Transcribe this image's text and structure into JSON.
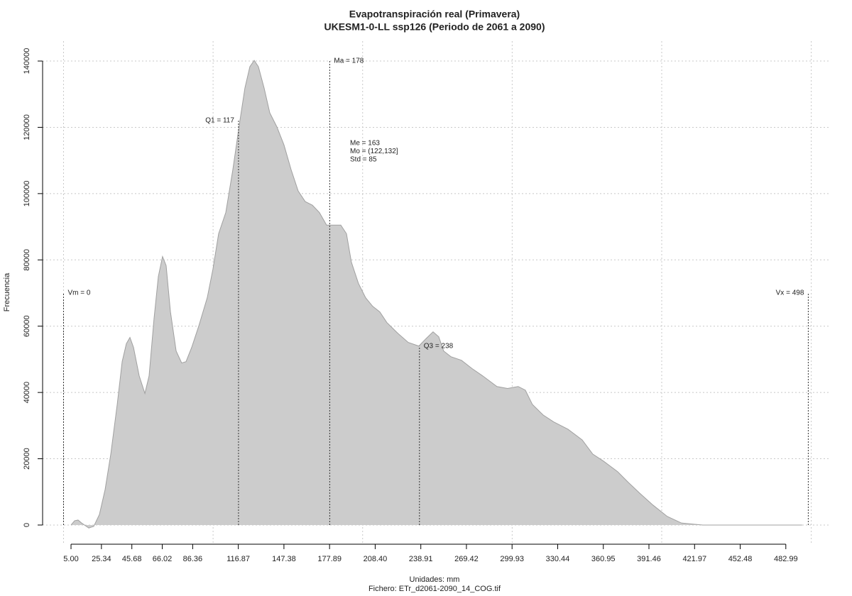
{
  "chart_data": {
    "type": "area",
    "title": "Evapotranspiración real (Primavera)",
    "subtitle": "UKESM1-0-LL ssp126 (Periodo de 2061 a 2090)",
    "xlabel": "Unidades: mm",
    "footer": "Fichero: ETr_d2061-2090_14_COG.tif",
    "ylabel": "Frecuencia",
    "color": "#cccccc",
    "line_color": "#a0a0a0",
    "x": [
      5.0,
      7.4,
      9.7,
      12.1,
      16.9,
      20.2,
      24.0,
      27.8,
      31.6,
      35.9,
      39.2,
      42.0,
      44.4,
      46.8,
      50.6,
      54.4,
      57.2,
      60.5,
      63.4,
      66.2,
      68.6,
      71.5,
      75.3,
      79.0,
      81.9,
      85.7,
      90.4,
      96.1,
      99.9,
      103.7,
      108.5,
      113.2,
      118.0,
      121.3,
      124.6,
      127.5,
      130.3,
      134.1,
      137.9,
      142.7,
      147.4,
      152.2,
      156.9,
      161.6,
      166.4,
      171.1,
      175.9,
      180.6,
      185.4,
      189.2,
      192.5,
      197.2,
      202.0,
      206.7,
      211.5,
      216.2,
      223.4,
      230.5,
      237.6,
      242.3,
      247.1,
      250.9,
      254.2,
      259.0,
      266.1,
      273.2,
      280.3,
      289.8,
      296.9,
      304.0,
      308.8,
      313.5,
      320.7,
      327.8,
      337.3,
      346.8,
      353.9,
      361.0,
      370.5,
      377.6,
      385.3,
      394.2,
      403.7,
      413.2,
      427.5,
      493.9
    ],
    "values": [
      0,
      1300,
      1500,
      600,
      -900,
      -400,
      3200,
      10700,
      21400,
      36400,
      49300,
      54700,
      56600,
      53600,
      45000,
      39700,
      45000,
      62200,
      75000,
      81000,
      78300,
      64300,
      52500,
      48900,
      49300,
      53600,
      60000,
      68600,
      77200,
      87900,
      94300,
      107200,
      122200,
      131900,
      138300,
      140200,
      138300,
      131900,
      124400,
      120100,
      114700,
      107200,
      100800,
      97600,
      96500,
      94300,
      90500,
      90500,
      90500,
      87900,
      79300,
      72900,
      68600,
      66000,
      64300,
      61100,
      57900,
      55100,
      54000,
      56200,
      58300,
      56800,
      52500,
      50800,
      49700,
      47200,
      45000,
      41800,
      41200,
      41800,
      40700,
      36400,
      33200,
      31100,
      28900,
      25700,
      21400,
      19300,
      16100,
      12900,
      9600,
      6000,
      2600,
      600,
      0,
      0
    ],
    "xlim": [
      -14,
      513
    ],
    "ylim": [
      -6000,
      146000
    ],
    "xticks": [
      {
        "value": 5.0,
        "label": "5.00"
      },
      25.34,
      45.68,
      66.02,
      86.36,
      116.87,
      147.38,
      177.89,
      {
        "value": 208.4,
        "label": "208.40"
      },
      238.91,
      269.42,
      299.93,
      330.44,
      360.95,
      391.46,
      421.97,
      452.48,
      482.99
    ],
    "yticks": [
      0,
      20000,
      40000,
      60000,
      80000,
      100000,
      120000,
      140000
    ],
    "xgrid": [
      0,
      100,
      200,
      300,
      400,
      500
    ],
    "grid": true,
    "markers": [
      {
        "label": "Vm = 0",
        "x": 0,
        "y": 70000,
        "label_side": "right"
      },
      {
        "label": "Q1 = 117",
        "x": 117,
        "y": 122000,
        "label_side": "left"
      },
      {
        "label": "Ma = 178",
        "x": 178,
        "y": 140000,
        "label_side": "right"
      },
      {
        "label": "Q3 = 238",
        "x": 238,
        "y": 54000,
        "label_side": "right"
      },
      {
        "label": "Vx = 498",
        "x": 498,
        "y": 70000,
        "label_side": "left"
      }
    ],
    "stats": [
      "Me = 163",
      "Mo = (122,132]",
      "Std = 85"
    ]
  }
}
